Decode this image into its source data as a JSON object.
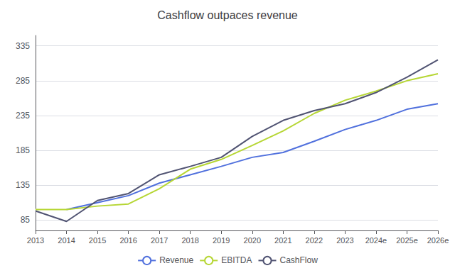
{
  "chart_data": {
    "type": "line",
    "title": "Cashflow outpaces revenue",
    "categories": [
      "2013",
      "2014",
      "2015",
      "2016",
      "2017",
      "2018",
      "2019",
      "2020",
      "2021",
      "2022",
      "2023",
      "2024e",
      "2025e",
      "2026e"
    ],
    "series": [
      {
        "name": "Revenue",
        "values": [
          null,
          100,
          110,
          120,
          138,
          150,
          162,
          175,
          182,
          198,
          215,
          228,
          244,
          252
        ]
      },
      {
        "name": "EBITDA",
        "values": [
          100,
          100,
          105,
          108,
          130,
          158,
          172,
          192,
          213,
          238,
          257,
          270,
          285,
          295
        ]
      },
      {
        "name": "CashFlow",
        "values": [
          98,
          83,
          113,
          123,
          150,
          162,
          175,
          205,
          228,
          242,
          252,
          268,
          290,
          315
        ]
      }
    ],
    "ylim": [
      70,
      350
    ],
    "yticks": [
      85,
      135,
      185,
      235,
      285,
      335
    ],
    "grid": true,
    "legend": "bottom"
  }
}
